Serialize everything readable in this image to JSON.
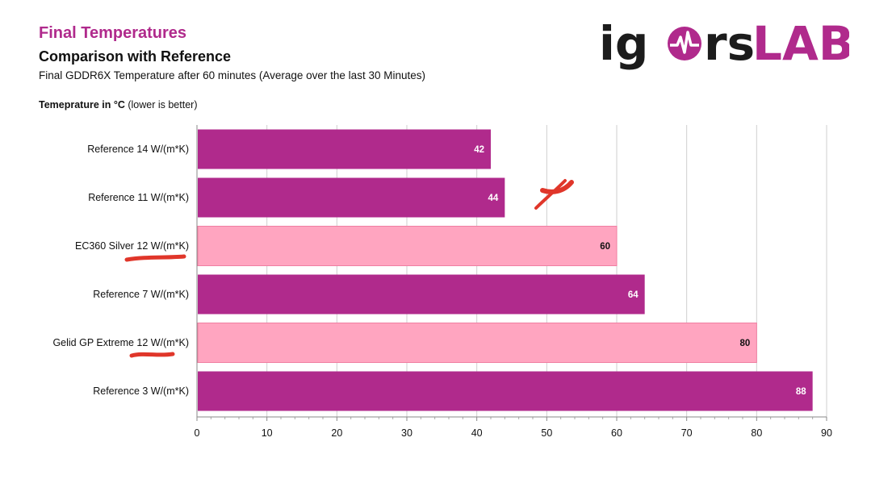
{
  "header": {
    "title": "Final Temperatures",
    "subtitle": "Comparison  with Reference",
    "subsubtitle": "Final GDDR6X Temperature  after 60 minutes (Average over the last 30 Minutes)",
    "axis_note_bold": "Temeprature in °C",
    "axis_note_rest": " (lower is better)"
  },
  "logo": {
    "part1": "ig",
    "part3": "rs",
    "part4": "LAB"
  },
  "colors": {
    "accent": "#b02a8c",
    "highlight": "#ffa5c0",
    "annotation": "#e0362a"
  },
  "chart_data": {
    "type": "bar",
    "orientation": "horizontal",
    "categories": [
      "Reference 14 W/(m*K)",
      "Reference 11 W/(m*K)",
      "EC360 Silver 12 W/(m*K)",
      "Reference 7 W/(m*K)",
      "Gelid GP Extreme 12 W/(m*K)",
      "Reference 3 W/(m*K)"
    ],
    "values": [
      42,
      44,
      60,
      64,
      80,
      88
    ],
    "highlighted": [
      false,
      false,
      true,
      false,
      true,
      false
    ],
    "xlim": [
      0,
      90
    ],
    "xticks": [
      "0",
      "10",
      "20",
      "30",
      "40",
      "50",
      "60",
      "70",
      "80",
      "90"
    ],
    "grid": true
  }
}
